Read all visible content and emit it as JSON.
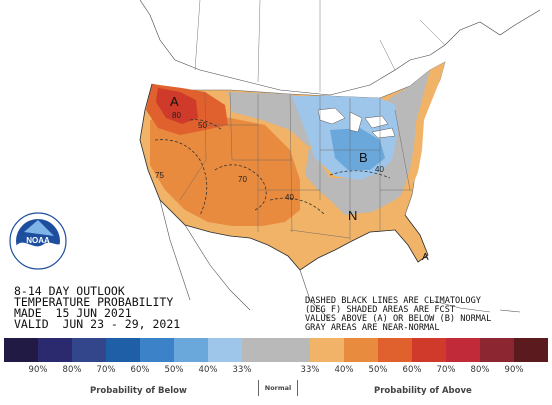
{
  "title_lines": [
    "8-14 DAY OUTLOOK",
    "TEMPERATURE PROBABILITY",
    "MADE  15 JUN 2021",
    "VALID  JUN 23 - 29, 2021"
  ],
  "notes": [
    "DASHED BLACK LINES ARE CLIMATOLOGY",
    "(DEG F) SHADED AREAS ARE FCST",
    "VALUES ABOVE (A) OR BELOW (B) NORMAL",
    "GRAY AREAS ARE NEAR-NORMAL"
  ],
  "logo_text": "NOAA",
  "map_labels": {
    "a_northwest": "A",
    "b_midwest": "B",
    "n_southeast": "N",
    "a_florida": "A",
    "c80": "80",
    "c50": "50",
    "c75": "75",
    "c70": "70",
    "c40": "40",
    "c40b": "40"
  },
  "legend": {
    "colors": [
      "#201a44",
      "#2b2a6e",
      "#33468c",
      "#1f5fa8",
      "#3c82c8",
      "#6aa8dc",
      "#9ec6ea",
      "#b9b9b9",
      "#b9b9b9",
      "#f0b367",
      "#e88b3f",
      "#e0602e",
      "#cf3a2a",
      "#c02a39",
      "#8c2630",
      "#5a1a1e"
    ],
    "tick_labels": [
      "90%",
      "80%",
      "70%",
      "60%",
      "50%",
      "40%",
      "33%",
      "",
      "33%",
      "40%",
      "50%",
      "60%",
      "70%",
      "80%",
      "90%"
    ],
    "below_label": "Probability of Below",
    "normal_label": "Normal",
    "above_label": "Probability of Above"
  }
}
